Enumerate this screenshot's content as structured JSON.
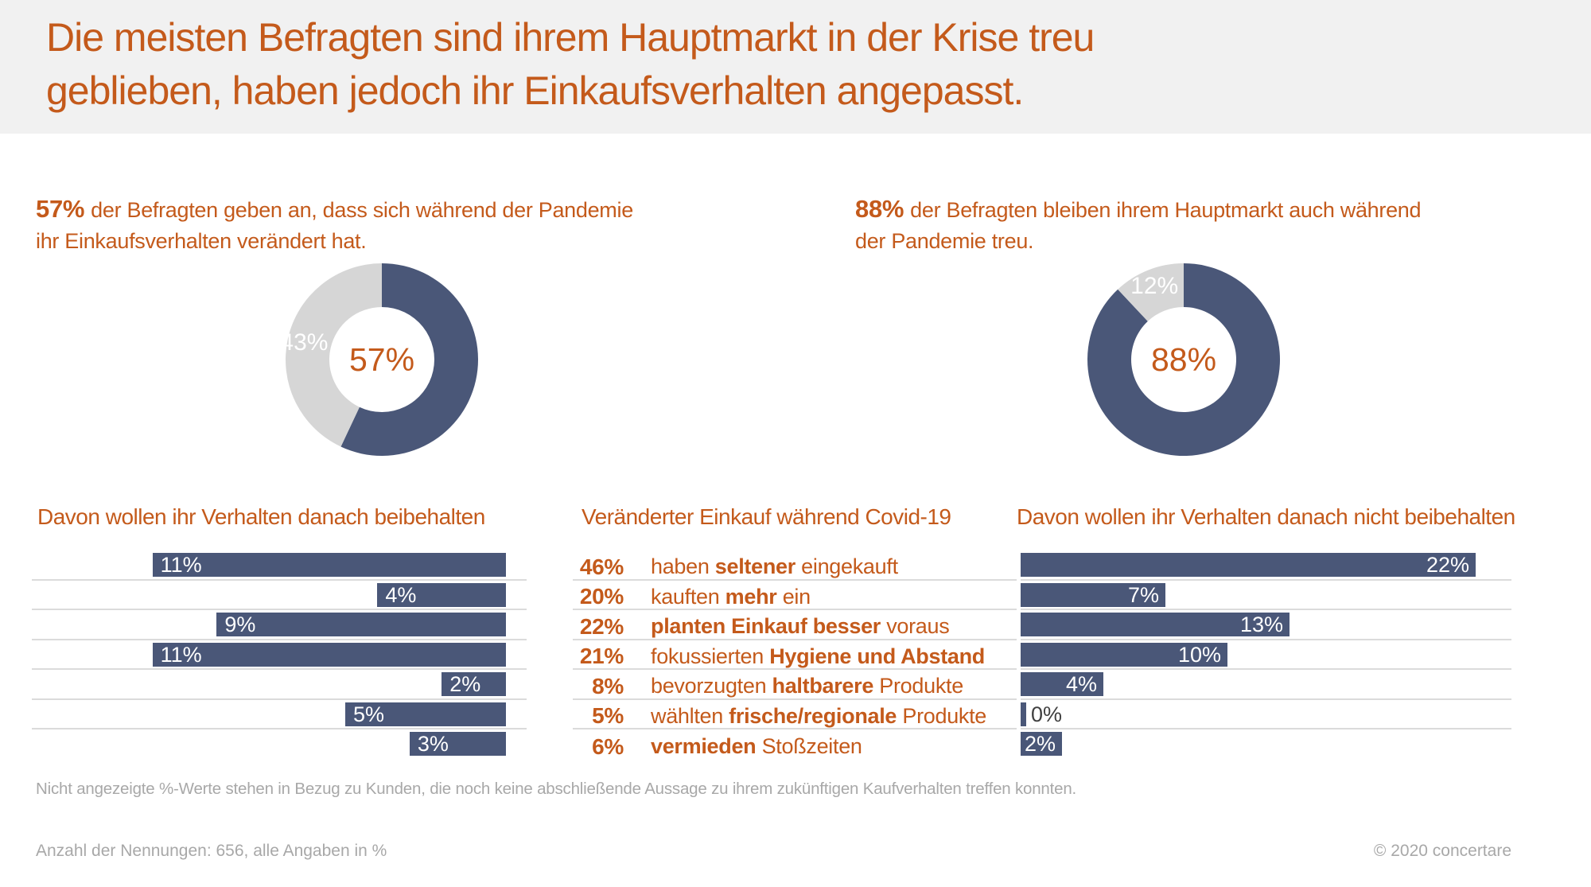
{
  "page": {
    "title_lines": [
      "Die meisten Befragten sind ihrem Hauptmarkt in der Krise treu",
      "geblieben, haben jedoch ihr Einkaufsverhalten angepasst."
    ],
    "footnote": "Nicht angezeigte %-Werte stehen in Bezug zu Kunden, die noch keine abschließende Aussage zu ihrem zukünftigen Kaufverhalten treffen konnten.",
    "footer_left": "Anzahl der Nennungen: 656, alle Angaben in %",
    "footer_right": "© 2020 concertare"
  },
  "colors": {
    "orange": "#C45A1B",
    "navy": "#4A5778",
    "donut_gray": "#D6D6D6",
    "line_gray": "#DBDBDB",
    "zero_label_dark": "#404040"
  },
  "intros": {
    "left": {
      "pct": "57%",
      "line1": "der Befragten geben an, dass sich während der Pandemie",
      "line2": "ihr Einkaufsverhalten verändert hat."
    },
    "right": {
      "pct": "88%",
      "line1": "der Befragten bleiben ihrem Hauptmarkt auch während",
      "line2": "der Pandemie treu."
    }
  },
  "headers": {
    "left": "Davon wollen ihr Verhalten danach beibehalten",
    "mid": "Veränderter Einkauf während Covid-19",
    "right": "Davon wollen ihr Verhalten danach nicht beibehalten"
  },
  "chart_data": [
    {
      "type": "pie",
      "name": "donut-changed-behavior",
      "title": "57% der Befragten geben an, dass sich während der Pandemie ihr Einkaufsverhalten verändert hat.",
      "values": [
        57,
        43
      ],
      "slice_labels": [
        "57%",
        "43%"
      ],
      "colors": [
        "#4A5778",
        "#D6D6D6"
      ],
      "center_label": "57%",
      "ring_label": "43%",
      "donut_hole": 0.55,
      "start_angle_deg": 0,
      "direction": "clockwise"
    },
    {
      "type": "pie",
      "name": "donut-stayed-loyal",
      "title": "88% der Befragten bleiben ihrem Hauptmarkt auch während der Pandemie treu.",
      "values": [
        88,
        12
      ],
      "slice_labels": [
        "88%",
        "12%"
      ],
      "colors": [
        "#4A5778",
        "#D6D6D6"
      ],
      "center_label": "88%",
      "ring_label": "12%",
      "donut_hole": 0.55,
      "start_angle_deg": 0,
      "direction": "clockwise"
    },
    {
      "type": "bar",
      "name": "keep-behavior-afterwards",
      "title": "Davon wollen ihr Verhalten danach beibehalten",
      "orientation": "horizontal",
      "bar_alignment": "right",
      "categories": [
        "haben seltener eingekauft",
        "kauften mehr ein",
        "planten Einkauf besser voraus",
        "fokussierten Hygiene und Abstand",
        "bevorzugten haltbarere Produkte",
        "wählten frische/regionale Produkte",
        "vermieden Stoßzeiten"
      ],
      "values": [
        11,
        4,
        9,
        11,
        2,
        5,
        3
      ],
      "labels": [
        "11%",
        "4%",
        "9%",
        "11%",
        "2%",
        "5%",
        "3%"
      ],
      "unit": "%",
      "grid": "row-separators"
    },
    {
      "type": "table",
      "name": "changed-shopping-during-covid",
      "title": "Veränderter Einkauf während Covid-19",
      "categories": [
        "haben seltener eingekauft",
        "kauften mehr ein",
        "planten Einkauf besser voraus",
        "fokussierten Hygiene und Abstand",
        "bevorzugten haltbarere Produkte",
        "wählten frische/regionale Produkte",
        "vermieden Stoßzeiten"
      ],
      "values": [
        46,
        20,
        22,
        21,
        8,
        5,
        6
      ],
      "labels": [
        "46%",
        "20%",
        "22%",
        "21%",
        "8%",
        "5%",
        "6%"
      ],
      "unit": "%",
      "grid": "row-separators"
    },
    {
      "type": "bar",
      "name": "not-keep-behavior-afterwards",
      "title": "Davon wollen ihr Verhalten danach nicht beibehalten",
      "orientation": "horizontal",
      "bar_alignment": "left",
      "categories": [
        "haben seltener eingekauft",
        "kauften mehr ein",
        "planten Einkauf besser voraus",
        "fokussierten Hygiene und Abstand",
        "bevorzugten haltbarere Produkte",
        "wählten frische/regionale Produkte",
        "vermieden Stoßzeiten"
      ],
      "values": [
        22,
        7,
        13,
        10,
        4,
        0,
        2
      ],
      "labels": [
        "22%",
        "7%",
        "13%",
        "10%",
        "4%",
        "0%",
        "2%"
      ],
      "unit": "%",
      "grid": "row-separators"
    }
  ],
  "middle_rows": [
    {
      "segments": [
        {
          "t": "haben "
        },
        {
          "t": "seltener",
          "b": true
        },
        {
          "t": " eingekauft"
        }
      ]
    },
    {
      "segments": [
        {
          "t": "kauften "
        },
        {
          "t": "mehr",
          "b": true
        },
        {
          "t": " ein"
        }
      ]
    },
    {
      "segments": [
        {
          "t": "planten Einkauf besser",
          "b": true
        },
        {
          "t": " voraus"
        }
      ]
    },
    {
      "segments": [
        {
          "t": "fokussierten "
        },
        {
          "t": "Hygiene und Abstand",
          "b": true
        }
      ]
    },
    {
      "segments": [
        {
          "t": "bevorzugten "
        },
        {
          "t": "haltbarere",
          "b": true
        },
        {
          "t": " Produkte"
        }
      ]
    },
    {
      "segments": [
        {
          "t": "wählten "
        },
        {
          "t": "frische/regionale",
          "b": true
        },
        {
          "t": " Produkte"
        }
      ]
    },
    {
      "segments": [
        {
          "t": "vermieden",
          "b": true
        },
        {
          "t": " Stoßzeiten"
        }
      ]
    }
  ]
}
